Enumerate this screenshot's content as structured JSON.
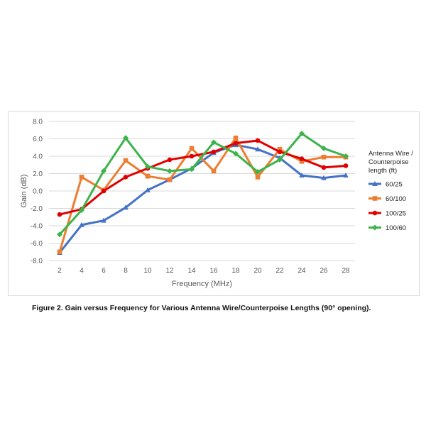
{
  "caption": "Figure 2. Gain versus Frequency for Various Antenna Wire/Counterpoise Lengths (90° opening).",
  "chart_data": {
    "type": "line",
    "title": "",
    "xlabel": "Frequency (MHz)",
    "ylabel": "Gain (dB)",
    "x": [
      2,
      4,
      6,
      8,
      10,
      12,
      14,
      16,
      18,
      20,
      22,
      24,
      26,
      28
    ],
    "y_ticks": [
      "8.0",
      "6.0",
      "4.0",
      "2.0",
      "0.0",
      "-2.0",
      "-4.0",
      "-6.0",
      "-8.0"
    ],
    "ylim": [
      -8,
      8
    ],
    "grid": "horizontal",
    "legend_title_lines": [
      "Antenna Wire /",
      "Counterpoise",
      "length (ft)"
    ],
    "legend_position": "right",
    "series": [
      {
        "name": "60/25",
        "color": "#4472c4",
        "marker": "triangle",
        "values": [
          -7.1,
          -3.9,
          -3.4,
          -1.9,
          0.1,
          1.3,
          2.6,
          4.4,
          5.3,
          4.8,
          3.8,
          1.8,
          1.5,
          1.8
        ]
      },
      {
        "name": "60/100",
        "color": "#ed7d31",
        "marker": "square",
        "values": [
          -7.0,
          1.6,
          0.1,
          3.5,
          1.7,
          1.3,
          4.9,
          2.3,
          6.1,
          1.6,
          4.8,
          3.4,
          3.9,
          3.9
        ]
      },
      {
        "name": "100/25",
        "color": "#e00000",
        "marker": "circle",
        "values": [
          -2.7,
          -2.1,
          0.0,
          1.6,
          2.6,
          3.6,
          4.0,
          4.5,
          5.5,
          5.8,
          4.5,
          3.7,
          2.7,
          2.9
        ]
      },
      {
        "name": "100/60",
        "color": "#3cb44b",
        "marker": "diamond",
        "values": [
          -5.0,
          -2.2,
          2.3,
          6.1,
          2.8,
          2.3,
          2.5,
          5.6,
          4.3,
          2.2,
          3.6,
          6.6,
          4.9,
          4.0
        ]
      }
    ]
  }
}
